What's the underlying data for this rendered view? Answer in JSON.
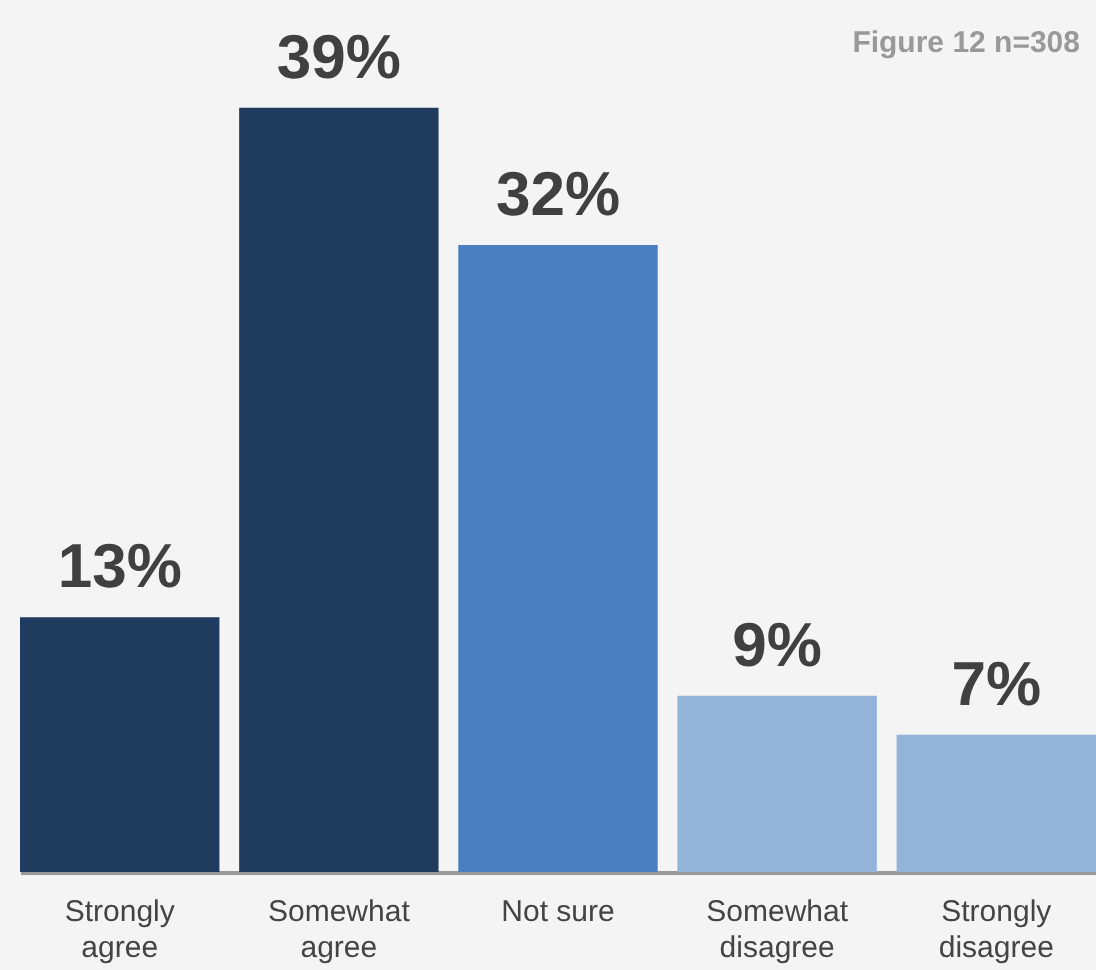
{
  "chart_data": {
    "type": "bar",
    "categories": [
      "Strongly agree",
      "Somewhat agree",
      "Not sure",
      "Somewhat disagree",
      "Strongly disagree"
    ],
    "values": [
      13,
      39,
      32,
      9,
      7
    ],
    "value_labels": [
      "13%",
      "39%",
      "32%",
      "9%",
      "7%"
    ],
    "colors": [
      "#1f3c5e",
      "#1f3c5e",
      "#4a7fc1",
      "#93b3d9",
      "#93b3d9"
    ],
    "annotations": [
      "Figure 12 n=308"
    ],
    "grid": false
  }
}
